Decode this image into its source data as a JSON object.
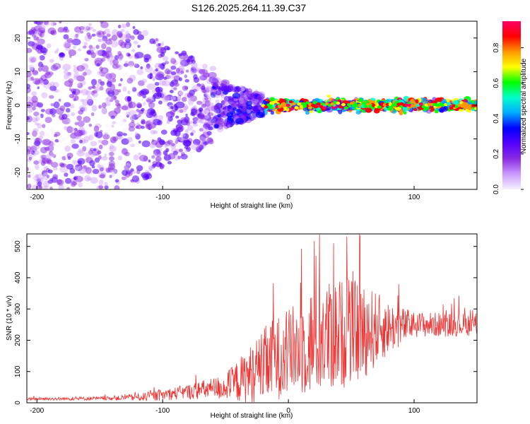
{
  "figure_title": "S126.2025.264.11.39.C37",
  "chart_data": [
    {
      "type": "heatmap",
      "title": "S126.2025.264.11.39.C37",
      "xlabel": "Height of straight line (km)",
      "ylabel": "Frequency (Hz)",
      "xlim": [
        -208,
        150
      ],
      "ylim": [
        -25,
        25
      ],
      "xticks": [
        -200,
        -100,
        0,
        100
      ],
      "yticks": [
        -20,
        -10,
        0,
        10,
        20
      ],
      "colorbar": {
        "label": "Normalized spectral amplitude",
        "range": [
          0,
          0.95
        ],
        "ticks": [
          0.0,
          0.2,
          0.4,
          0.6,
          0.8
        ],
        "colors": [
          "#f6f2ff",
          "#cc99ff",
          "#8a2be2",
          "#5500ff",
          "#0000ff",
          "#00aaff",
          "#00ffcc",
          "#00ff00",
          "#ffff00",
          "#ff9900",
          "#ff0000",
          "#ff0066"
        ]
      },
      "description_points": [
        {
          "x_range": [
            -208,
            -130
          ],
          "freq_spread": 25,
          "amplitude": 0.15
        },
        {
          "x_range": [
            -130,
            -60
          ],
          "freq_spread": 12,
          "amplitude": 0.2
        },
        {
          "x_range": [
            -60,
            -20
          ],
          "freq_spread": 6,
          "amplitude": 0.25
        },
        {
          "x_range": [
            -20,
            150
          ],
          "freq_spread": 1.5,
          "amplitude": 0.8
        }
      ]
    },
    {
      "type": "line",
      "xlabel": "Height of straight line (km)",
      "ylabel": "SNR (10 * v/v)",
      "xlim": [
        -208,
        150
      ],
      "ylim": [
        0,
        540
      ],
      "xticks": [
        -200,
        -100,
        0,
        100
      ],
      "yticks": [
        0,
        100,
        200,
        300,
        400,
        500
      ],
      "line_color": "#ee3333",
      "envelope": [
        {
          "x": -208,
          "base": 12,
          "amp": 8
        },
        {
          "x": -140,
          "base": 14,
          "amp": 10
        },
        {
          "x": -110,
          "base": 20,
          "amp": 25
        },
        {
          "x": -80,
          "base": 35,
          "amp": 40
        },
        {
          "x": -50,
          "base": 50,
          "amp": 70
        },
        {
          "x": -30,
          "base": 90,
          "amp": 160
        },
        {
          "x": -15,
          "base": 130,
          "amp": 220
        },
        {
          "x": 0,
          "base": 160,
          "amp": 230
        },
        {
          "x": 20,
          "base": 200,
          "amp": 300
        },
        {
          "x": 40,
          "base": 220,
          "amp": 300
        },
        {
          "x": 60,
          "base": 230,
          "amp": 260
        },
        {
          "x": 80,
          "base": 240,
          "amp": 140
        },
        {
          "x": 100,
          "base": 250,
          "amp": 70
        },
        {
          "x": 150,
          "base": 250,
          "amp": 60
        }
      ],
      "peaks": [
        {
          "x": 57,
          "y": 532
        },
        {
          "x": 36,
          "y": 510
        },
        {
          "x": 22,
          "y": 470
        },
        {
          "x": -12,
          "y": 382
        },
        {
          "x": 47,
          "y": 395
        }
      ]
    }
  ]
}
